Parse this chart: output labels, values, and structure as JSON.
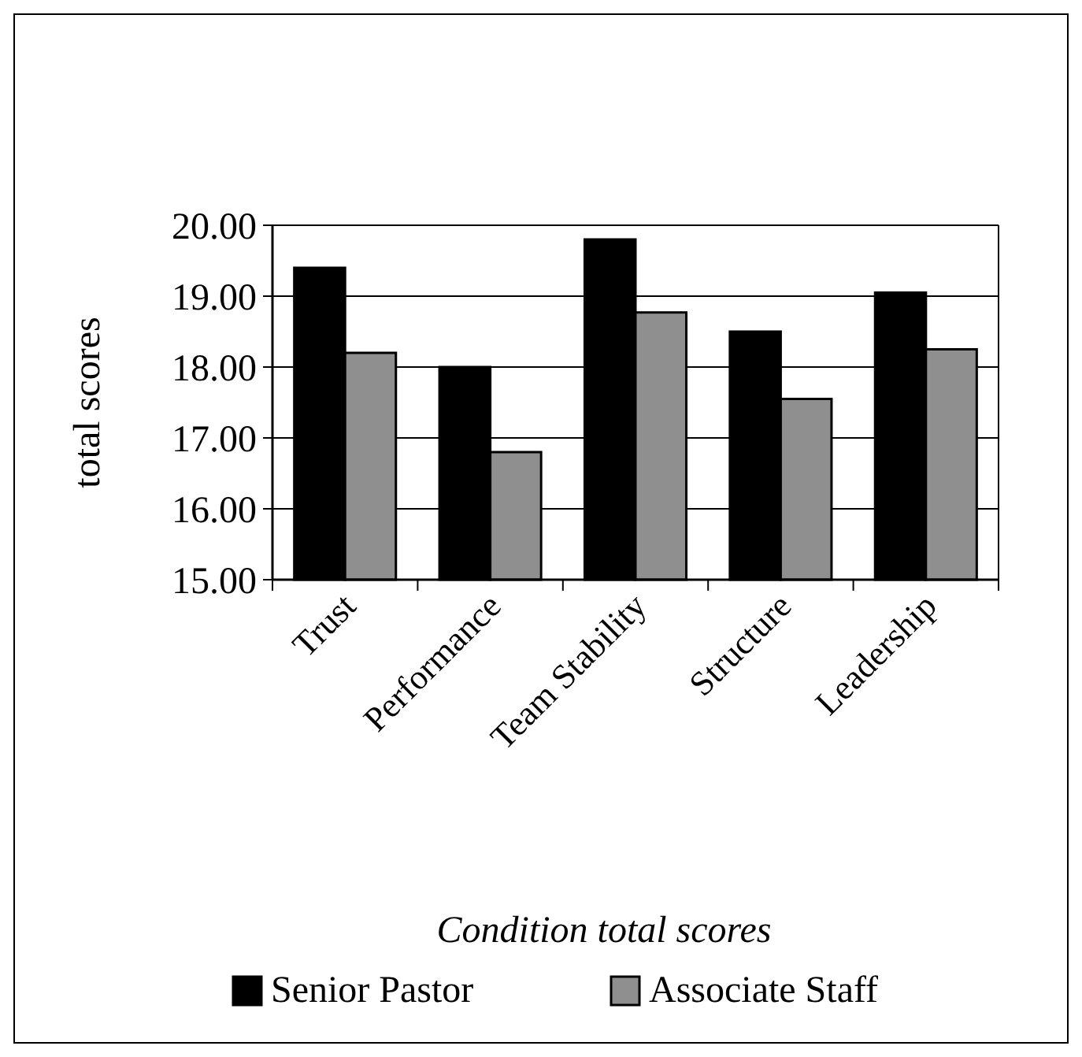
{
  "chart_data": {
    "type": "bar",
    "xlabel": "Condition total scores",
    "ylabel": "total scores",
    "categories": [
      "Trust",
      "Performance",
      "Team Stability",
      "Structure",
      "Leadership"
    ],
    "series": [
      {
        "name": "Senior Pastor",
        "color": "#000000",
        "values": [
          19.4,
          18.0,
          19.8,
          18.5,
          19.05
        ]
      },
      {
        "name": "Associate Staff",
        "color": "#8f8f8f",
        "values": [
          18.2,
          16.8,
          18.77,
          17.55,
          18.25
        ]
      }
    ],
    "ylim": [
      15,
      20
    ],
    "yticks": [
      {
        "value": 15,
        "label": "15.00"
      },
      {
        "value": 16,
        "label": "16.00"
      },
      {
        "value": 17,
        "label": "17.00"
      },
      {
        "value": 18,
        "label": "18.00"
      },
      {
        "value": 19,
        "label": "19.00"
      },
      {
        "value": 20,
        "label": "20.00"
      }
    ],
    "grid": "y",
    "legend": "bottom"
  }
}
